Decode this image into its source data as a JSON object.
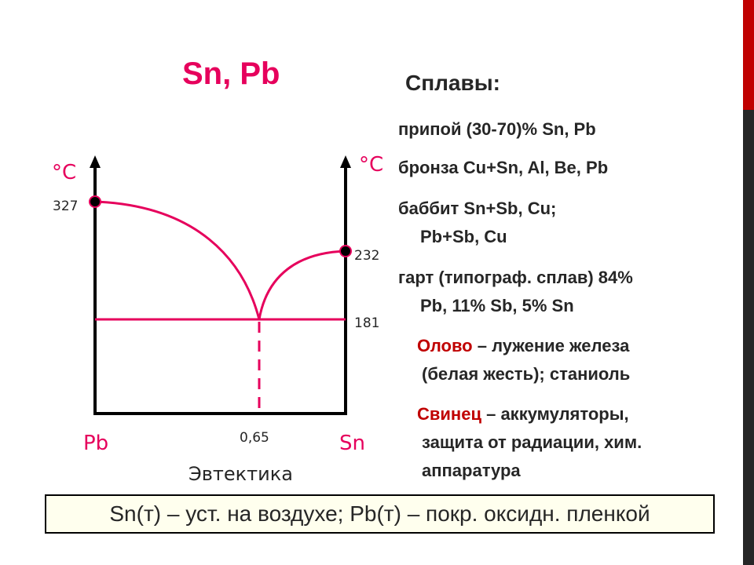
{
  "title": "Sn, Pb",
  "alloys": {
    "heading": "Сплавы:",
    "pripoy": "припой (30-70)% Sn, Pb",
    "bronza": "бронза Cu+Sn, Al, Be, Pb",
    "babbit_1": "баббит Sn+Sb, Cu;",
    "babbit_2": "Pb+Sb, Cu",
    "gart_1": "гарт (типограф. сплав) 84%",
    "gart_2": "Pb, 11% Sb, 5% Sn"
  },
  "uses": {
    "tin_word": "Олово",
    "tin_rest": " – лужение железа",
    "tin_2": "(белая жесть); станиоль",
    "lead_word": "Свинец",
    "lead_rest": " – аккумуляторы,",
    "lead_2": "защита от радиации, хим.",
    "lead_3": "аппаратура"
  },
  "diagram": {
    "left_unit": "°C",
    "right_unit": "°C",
    "pb_melting": "327",
    "sn_melting": "232",
    "eutectic_temp": "181",
    "eutectic_comp": "0,65",
    "left_label": "Pb",
    "right_label": "Sn",
    "caption": "Эвтектика"
  },
  "footer": "Sn(т) – уст. на воздухе; Pb(т) – покр. оксидн. пленкой",
  "colors": {
    "accent": "#e6005c",
    "red_text": "#c00000",
    "side_bar": "#262626"
  }
}
